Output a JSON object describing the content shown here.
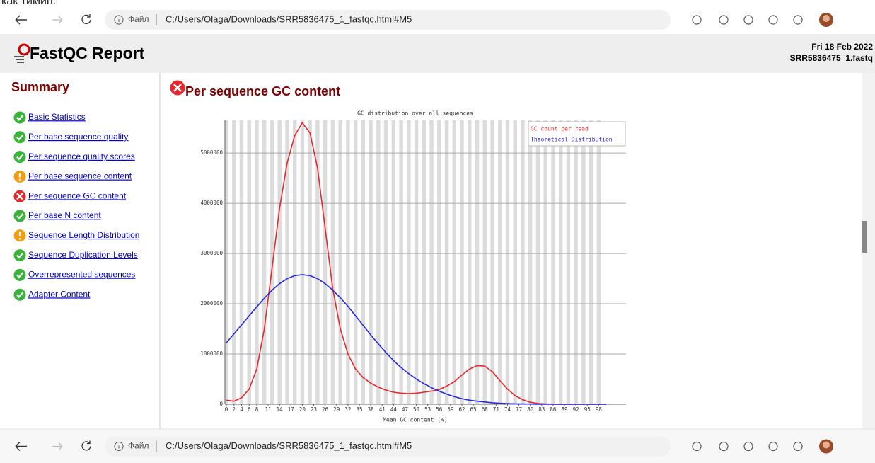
{
  "top_text": "как тимин.",
  "browser": {
    "protocol_label": "Файл",
    "url": "C:/Users/Olaga/Downloads/SRR5836475_1_fastqc.html#M5"
  },
  "header": {
    "title": "FastQC Report",
    "date": "Fri 18 Feb 2022",
    "filename": "SRR5836475_1.fastq"
  },
  "summary": {
    "title": "Summary",
    "items": [
      {
        "label": "Basic Statistics",
        "status": "pass"
      },
      {
        "label": "Per base sequence quality",
        "status": "pass"
      },
      {
        "label": "Per sequence quality scores",
        "status": "pass"
      },
      {
        "label": "Per base sequence content",
        "status": "warn"
      },
      {
        "label": "Per sequence GC content",
        "status": "fail"
      },
      {
        "label": "Per base N content",
        "status": "pass"
      },
      {
        "label": "Sequence Length Distribution",
        "status": "warn"
      },
      {
        "label": "Sequence Duplication Levels",
        "status": "pass"
      },
      {
        "label": "Overrepresented sequences",
        "status": "pass"
      },
      {
        "label": "Adapter Content",
        "status": "pass"
      }
    ]
  },
  "module": {
    "title": "Per sequence GC content",
    "status": "fail"
  },
  "chart_data": {
    "type": "line",
    "title": "GC distribution over all sequences",
    "x_label": "Mean GC content (%)",
    "x": [
      0,
      2,
      4,
      6,
      8,
      10,
      12,
      14,
      16,
      18,
      20,
      22,
      24,
      26,
      28,
      30,
      32,
      34,
      36,
      38,
      40,
      42,
      44,
      46,
      48,
      50,
      52,
      54,
      56,
      58,
      60,
      62,
      64,
      66,
      68,
      70,
      72,
      74,
      76,
      78,
      80,
      82,
      84,
      86,
      88,
      90,
      92,
      94,
      96,
      98,
      100
    ],
    "series": [
      {
        "name": "GC count per read",
        "color": "#e8262b",
        "values": [
          80000,
          60000,
          130000,
          300000,
          700000,
          1500000,
          2700000,
          3900000,
          4800000,
          5350000,
          5600000,
          5400000,
          4700000,
          3500000,
          2300000,
          1500000,
          1000000,
          700000,
          530000,
          420000,
          340000,
          280000,
          240000,
          220000,
          210000,
          220000,
          240000,
          260000,
          290000,
          360000,
          450000,
          580000,
          700000,
          770000,
          760000,
          650000,
          470000,
          300000,
          170000,
          90000,
          40000,
          15000,
          5000,
          3000,
          2000,
          1000,
          1000,
          0,
          0,
          0,
          0
        ]
      },
      {
        "name": "Theoretical Distribution",
        "color": "#2828e0",
        "values": [
          1220000,
          1400000,
          1580000,
          1760000,
          1940000,
          2110000,
          2270000,
          2400000,
          2500000,
          2560000,
          2580000,
          2560000,
          2500000,
          2400000,
          2270000,
          2120000,
          1950000,
          1760000,
          1570000,
          1380000,
          1200000,
          1030000,
          870000,
          730000,
          610000,
          500000,
          410000,
          330000,
          260000,
          200000,
          150000,
          110000,
          80000,
          60000,
          45000,
          30000,
          20000,
          14000,
          9000,
          6000,
          4000,
          2000,
          1000,
          0,
          0,
          0,
          0,
          0,
          0,
          0,
          0
        ]
      }
    ],
    "xlim": [
      0,
      105
    ],
    "xticks": [
      0,
      2,
      4,
      6,
      8,
      11,
      14,
      17,
      20,
      23,
      26,
      29,
      32,
      35,
      38,
      41,
      44,
      47,
      50,
      53,
      56,
      59,
      62,
      65,
      68,
      71,
      74,
      77,
      80,
      83,
      86,
      89,
      92,
      95,
      98
    ],
    "ylim": [
      0,
      5650000
    ],
    "yticks": [
      0,
      1000000,
      2000000,
      3000000,
      4000000,
      5000000
    ],
    "grid": true,
    "legend": "top-right"
  }
}
